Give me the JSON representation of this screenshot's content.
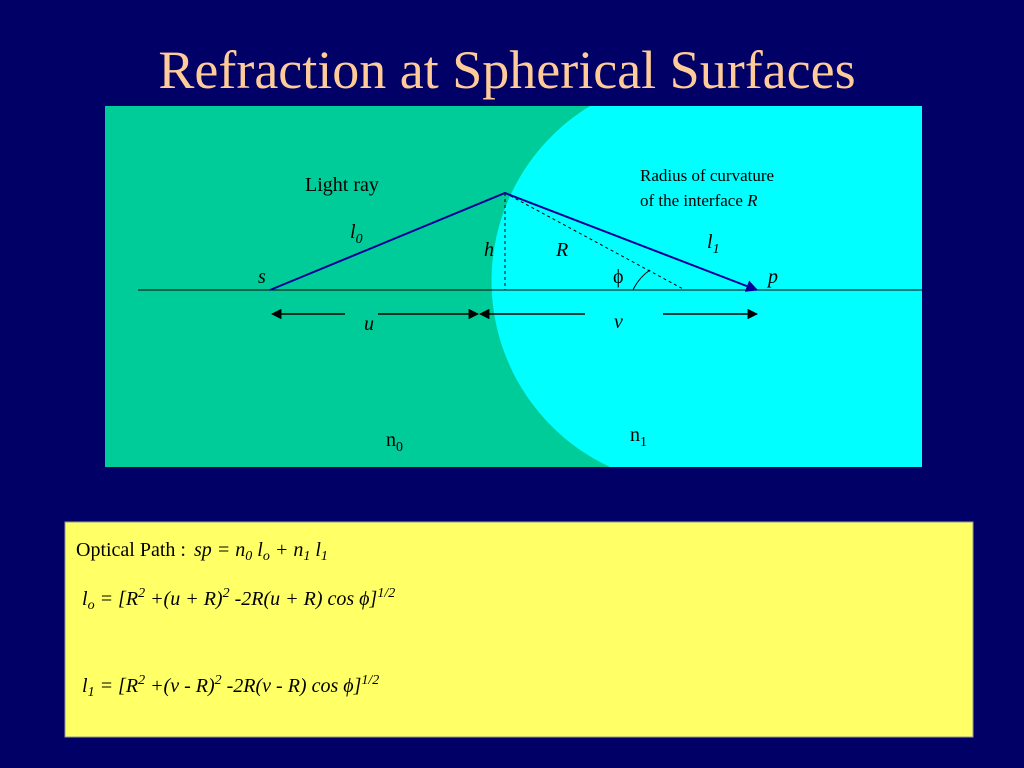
{
  "title": "Refraction at Spherical Surfaces",
  "diagram": {
    "light_ray": "Light ray",
    "radius_note": {
      "line1": "Radius of curvature",
      "line2": "of the interface ",
      "symbol": "R"
    },
    "l0": {
      "base": "l",
      "sub": "0"
    },
    "l1": {
      "base": "l",
      "sub": "1"
    },
    "h": "h",
    "R": "R",
    "phi": "ϕ",
    "s": "s",
    "p": "p",
    "u": "u",
    "v": "v",
    "n0": {
      "base": "n",
      "sub": "0"
    },
    "n1": {
      "base": "n",
      "sub": "1"
    }
  },
  "formulas": {
    "label": "Optical Path :",
    "optical_path": [
      {
        "text": "sp = n"
      },
      {
        "sub": "0"
      },
      {
        "text": " l"
      },
      {
        "sub": "o"
      },
      {
        "text": " + n"
      },
      {
        "sub": "1"
      },
      {
        "text": " l"
      },
      {
        "sub": "1"
      }
    ],
    "lo": [
      {
        "text": "l"
      },
      {
        "sub": "o"
      },
      {
        "text": " = [R"
      },
      {
        "sup": "2"
      },
      {
        "text": " +(u + R)"
      },
      {
        "sup": "2"
      },
      {
        "text": " -2R(u + R) cos ϕ]"
      },
      {
        "sup": "1/2"
      }
    ],
    "l1": [
      {
        "text": "l"
      },
      {
        "sub": "1"
      },
      {
        "text": " = [R"
      },
      {
        "sup": "2"
      },
      {
        "text": " +(v - R)"
      },
      {
        "sup": "2"
      },
      {
        "text": " -2R(v - R) cos ϕ]"
      },
      {
        "sup": "1/2"
      }
    ]
  }
}
